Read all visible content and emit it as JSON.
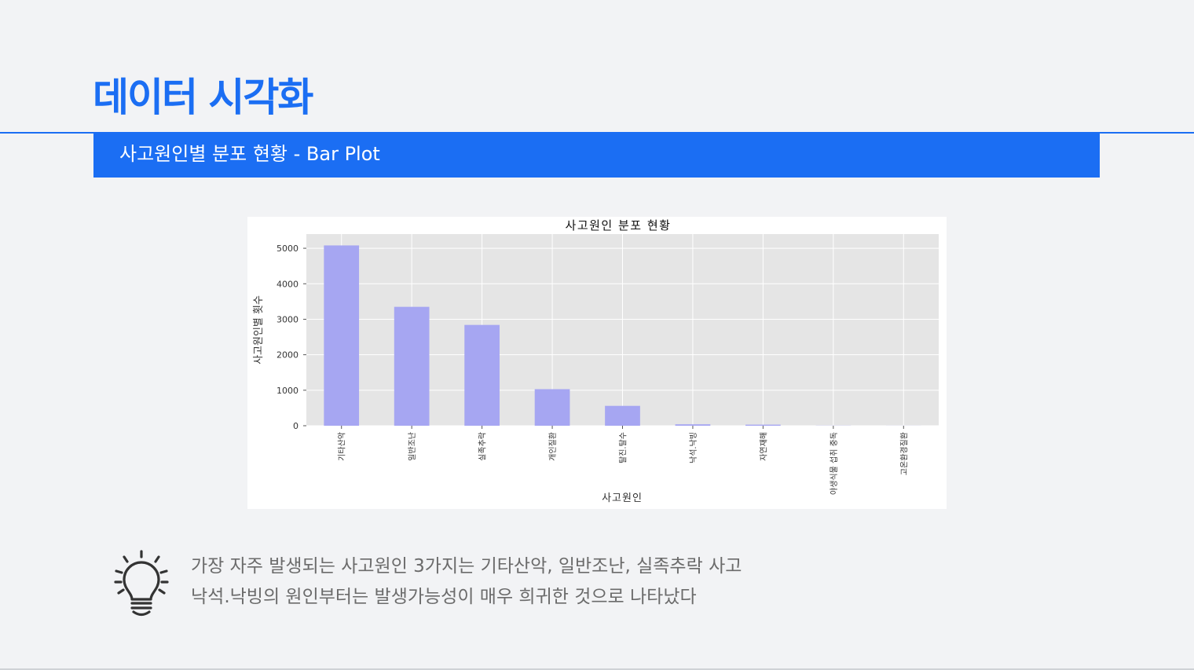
{
  "page": {
    "title": "데이터 시각화",
    "section": "사고원인별 분포 현황 - Bar Plot"
  },
  "chart_data": {
    "type": "bar",
    "title": "사고원인 분포 현황",
    "xlabel": "사고원인",
    "ylabel": "사고원인별 횟수",
    "categories": [
      "기타산악",
      "일반조난",
      "실족추락",
      "개인질환",
      "탈진.탈수",
      "낙석.낙빙",
      "자연재해",
      "야생식물 섭취 중독",
      "고온환경질환"
    ],
    "values": [
      5080,
      3350,
      2840,
      1030,
      560,
      40,
      30,
      4,
      2
    ],
    "ylim": [
      0,
      5400
    ],
    "yticks": [
      0,
      1000,
      2000,
      3000,
      4000,
      5000
    ],
    "ytick_labels": [
      "0",
      "1000",
      "2000",
      "3000",
      "4000",
      "5000"
    ],
    "grid": true,
    "colors": {
      "bar": "#a6a6f2",
      "plot_bg": "#e5e5e5",
      "grid": "#ffffff"
    }
  },
  "insight": {
    "icon": "lightbulb-icon",
    "lines": [
      "가장 자주 발생되는 사고원인 3가지는 기타산악, 일반조난, 실족추락 사고",
      "낙석.낙빙의 원인부터는 발생가능성이 매우 희귀한 것으로 나타났다"
    ]
  }
}
